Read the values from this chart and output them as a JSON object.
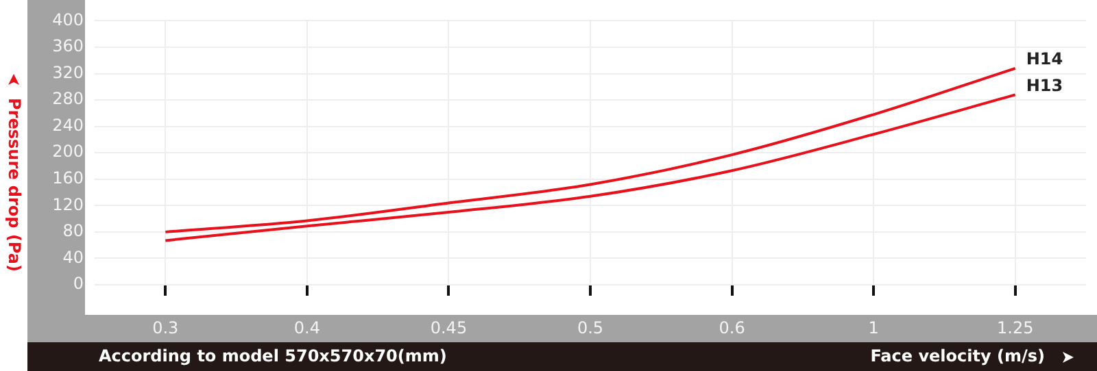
{
  "chart_data": {
    "type": "line",
    "xlabel": "Face velocity (m/s)",
    "ylabel": "Pressure drop (Pa)",
    "annotations": [
      "According to model 570x570x70(mm)"
    ],
    "categories": [
      "0.3",
      "0.4",
      "0.45",
      "0.5",
      "0.6",
      "1",
      "1.25"
    ],
    "series": [
      {
        "name": "H14",
        "color": "#e8101a",
        "values": [
          80,
          97,
          124,
          152,
          197,
          258,
          328
        ]
      },
      {
        "name": "H13",
        "color": "#e8101a",
        "values": [
          67,
          89,
          110,
          134,
          173,
          228,
          288
        ]
      }
    ],
    "ylim": [
      0,
      400
    ],
    "yticks": [
      0,
      40,
      80,
      120,
      160,
      200,
      240,
      280,
      320,
      360,
      400
    ],
    "grid": true,
    "legend": false,
    "marker": "none",
    "line_style": "solid"
  }
}
